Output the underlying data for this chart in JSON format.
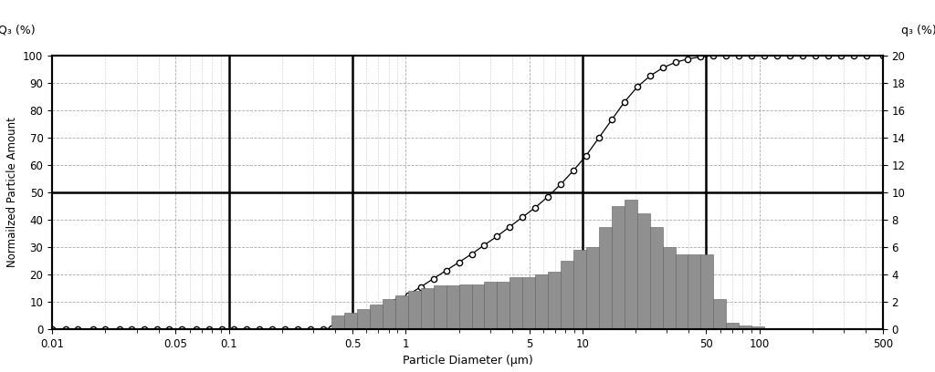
{
  "xlabel": "Particle Diameter (μm)",
  "ylabel_left": "Normailzed Particle Amount",
  "label_left_top": "Q₃ (%)",
  "label_right_top": "q₃ (%)",
  "xlim": [
    0.01,
    500
  ],
  "ylim_left": [
    0,
    100
  ],
  "ylim_right": [
    0,
    20
  ],
  "yticks_left": [
    0,
    10,
    20,
    30,
    40,
    50,
    60,
    70,
    80,
    90,
    100
  ],
  "yticks_right": [
    0,
    2,
    4,
    6,
    8,
    10,
    12,
    14,
    16,
    18,
    20
  ],
  "hlines_left": [
    50
  ],
  "vlines": [
    0.1,
    0.5,
    10,
    50
  ],
  "bar_color": "#909090",
  "bar_edge_color": "#606060",
  "line_color": "#000000",
  "marker_color": "#ffffff",
  "marker_edge_color": "#000000",
  "bin_edges": [
    0.38,
    0.449,
    0.53,
    0.626,
    0.739,
    0.872,
    1.03,
    1.216,
    1.435,
    1.694,
    2.0,
    2.361,
    2.786,
    3.289,
    3.882,
    4.582,
    5.41,
    6.383,
    7.534,
    8.891,
    10.496,
    12.388,
    14.622,
    17.255,
    20.366,
    24.04,
    28.372,
    33.48,
    39.516,
    46.641,
    55.045,
    64.961,
    76.645,
    90.479,
    106.786,
    126.044,
    148.735,
    175.517,
    207.176,
    244.565,
    288.712,
    340.72,
    402.0
  ],
  "q3_values": [
    1.0,
    1.2,
    1.5,
    1.8,
    2.2,
    2.5,
    2.8,
    3.0,
    3.2,
    3.2,
    3.3,
    3.3,
    3.5,
    3.5,
    3.8,
    3.8,
    4.0,
    4.2,
    5.0,
    5.8,
    6.0,
    7.5,
    9.0,
    9.5,
    8.5,
    7.5,
    6.0,
    5.5,
    5.5,
    5.5,
    2.2,
    0.5,
    0.3,
    0.2,
    0.1,
    0.05,
    0.0,
    0.0,
    0.0,
    0.0,
    0.0,
    0.0
  ],
  "Q3_diameters": [
    0.01,
    0.012,
    0.014,
    0.017,
    0.02,
    0.024,
    0.028,
    0.033,
    0.039,
    0.046,
    0.054,
    0.065,
    0.077,
    0.091,
    0.107,
    0.126,
    0.149,
    0.176,
    0.208,
    0.245,
    0.289,
    0.341,
    0.38,
    0.449,
    0.53,
    0.626,
    0.739,
    0.872,
    1.03,
    1.216,
    1.435,
    1.694,
    2.0,
    2.361,
    2.786,
    3.289,
    3.882,
    4.582,
    5.41,
    6.383,
    7.534,
    8.891,
    10.496,
    12.388,
    14.622,
    17.255,
    20.366,
    24.04,
    28.372,
    33.48,
    39.516,
    46.641,
    55.045,
    64.961,
    76.645,
    90.479,
    106.786,
    126.044,
    148.735,
    175.517,
    207.176,
    244.565,
    288.712,
    340.72,
    402.0,
    500.0
  ],
  "Q3_values": [
    0.0,
    0.0,
    0.0,
    0.0,
    0.0,
    0.0,
    0.0,
    0.0,
    0.0,
    0.0,
    0.0,
    0.0,
    0.0,
    0.0,
    0.0,
    0.0,
    0.0,
    0.0,
    0.0,
    0.0,
    0.0,
    0.0,
    0.5,
    1.5,
    3.0,
    5.0,
    7.5,
    10.0,
    12.5,
    15.5,
    18.5,
    21.5,
    24.5,
    27.5,
    30.8,
    34.0,
    37.5,
    41.0,
    44.5,
    48.5,
    53.0,
    58.0,
    63.5,
    70.0,
    76.5,
    83.0,
    88.5,
    92.5,
    95.5,
    97.5,
    98.8,
    99.5,
    100.0,
    100.0,
    100.0,
    100.0,
    100.0,
    100.0,
    100.0,
    100.0,
    100.0,
    100.0,
    100.0,
    100.0,
    100.0,
    100.0
  ]
}
